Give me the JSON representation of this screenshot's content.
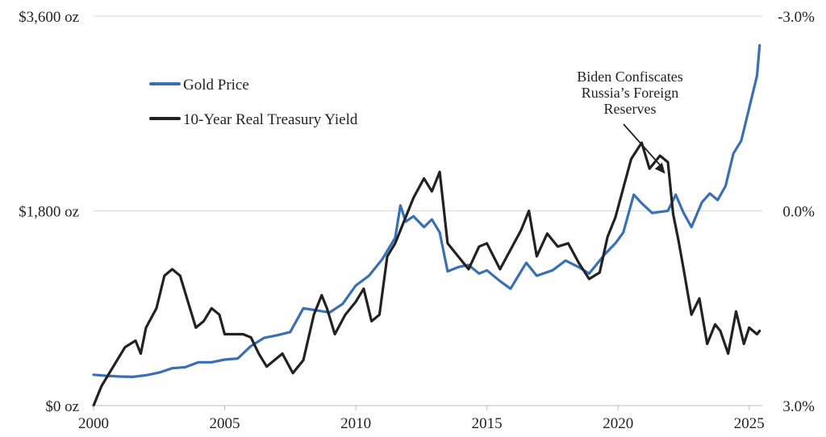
{
  "chart_data": {
    "type": "line",
    "title": "",
    "xlabel": "",
    "x_ticks": [
      "2000",
      "2005",
      "2010",
      "2015",
      "2020",
      "2025"
    ],
    "xlim": [
      2000,
      2025.5
    ],
    "y_left": {
      "ticks": [
        "$0 oz",
        "$1,800 oz",
        "$3,600 oz"
      ],
      "values": [
        0,
        1800,
        3600
      ],
      "ylim": [
        0,
        3600
      ]
    },
    "y_right": {
      "ticks": [
        "-3.0%",
        "0.0%",
        "3.0%"
      ],
      "values": [
        -3.0,
        0.0,
        3.0
      ],
      "ylim": [
        3.0,
        -3.0
      ],
      "inverted": true
    },
    "grid": true,
    "legend_position": "top-left",
    "series": [
      {
        "name": "Gold Price",
        "color": "#3a6fb5",
        "axis": "left",
        "points": [
          [
            2000.0,
            285
          ],
          [
            2000.5,
            275
          ],
          [
            2001.0,
            268
          ],
          [
            2001.5,
            265
          ],
          [
            2002.0,
            280
          ],
          [
            2002.5,
            305
          ],
          [
            2003.0,
            345
          ],
          [
            2003.5,
            355
          ],
          [
            2004.0,
            400
          ],
          [
            2004.5,
            400
          ],
          [
            2005.0,
            425
          ],
          [
            2005.5,
            435
          ],
          [
            2006.0,
            550
          ],
          [
            2006.5,
            625
          ],
          [
            2007.0,
            650
          ],
          [
            2007.5,
            680
          ],
          [
            2008.0,
            900
          ],
          [
            2008.5,
            880
          ],
          [
            2009.0,
            860
          ],
          [
            2009.5,
            940
          ],
          [
            2010.0,
            1110
          ],
          [
            2010.5,
            1200
          ],
          [
            2011.0,
            1350
          ],
          [
            2011.5,
            1550
          ],
          [
            2011.7,
            1850
          ],
          [
            2011.9,
            1700
          ],
          [
            2012.2,
            1750
          ],
          [
            2012.6,
            1650
          ],
          [
            2012.9,
            1720
          ],
          [
            2013.2,
            1600
          ],
          [
            2013.5,
            1240
          ],
          [
            2013.9,
            1280
          ],
          [
            2014.3,
            1300
          ],
          [
            2014.7,
            1220
          ],
          [
            2015.0,
            1250
          ],
          [
            2015.5,
            1150
          ],
          [
            2015.9,
            1080
          ],
          [
            2016.5,
            1320
          ],
          [
            2016.9,
            1200
          ],
          [
            2017.5,
            1250
          ],
          [
            2018.0,
            1340
          ],
          [
            2018.5,
            1280
          ],
          [
            2018.9,
            1220
          ],
          [
            2019.5,
            1400
          ],
          [
            2019.9,
            1500
          ],
          [
            2020.2,
            1600
          ],
          [
            2020.6,
            1950
          ],
          [
            2020.9,
            1870
          ],
          [
            2021.3,
            1780
          ],
          [
            2021.6,
            1790
          ],
          [
            2021.9,
            1800
          ],
          [
            2022.2,
            1950
          ],
          [
            2022.5,
            1780
          ],
          [
            2022.8,
            1650
          ],
          [
            2023.2,
            1880
          ],
          [
            2023.5,
            1960
          ],
          [
            2023.8,
            1900
          ],
          [
            2024.1,
            2030
          ],
          [
            2024.4,
            2330
          ],
          [
            2024.7,
            2450
          ],
          [
            2024.9,
            2650
          ],
          [
            2025.1,
            2850
          ],
          [
            2025.3,
            3050
          ],
          [
            2025.4,
            3330
          ]
        ]
      },
      {
        "name": "10-Year Real Treasury Yield",
        "color": "#222222",
        "axis": "right",
        "points": [
          [
            2000.0,
            3.0
          ],
          [
            2000.3,
            2.7
          ],
          [
            2000.6,
            2.5
          ],
          [
            2000.9,
            2.3
          ],
          [
            2001.2,
            2.1
          ],
          [
            2001.6,
            2.0
          ],
          [
            2001.8,
            2.2
          ],
          [
            2002.0,
            1.8
          ],
          [
            2002.4,
            1.5
          ],
          [
            2002.7,
            1.0
          ],
          [
            2003.0,
            0.9
          ],
          [
            2003.3,
            1.0
          ],
          [
            2003.6,
            1.4
          ],
          [
            2003.9,
            1.8
          ],
          [
            2004.2,
            1.7
          ],
          [
            2004.5,
            1.5
          ],
          [
            2004.8,
            1.6
          ],
          [
            2005.0,
            1.9
          ],
          [
            2005.3,
            1.9
          ],
          [
            2005.7,
            1.9
          ],
          [
            2006.0,
            1.95
          ],
          [
            2006.3,
            2.2
          ],
          [
            2006.6,
            2.4
          ],
          [
            2006.9,
            2.3
          ],
          [
            2007.2,
            2.2
          ],
          [
            2007.6,
            2.5
          ],
          [
            2008.0,
            2.3
          ],
          [
            2008.4,
            1.6
          ],
          [
            2008.7,
            1.3
          ],
          [
            2008.9,
            1.5
          ],
          [
            2009.2,
            1.9
          ],
          [
            2009.6,
            1.6
          ],
          [
            2010.0,
            1.4
          ],
          [
            2010.3,
            1.2
          ],
          [
            2010.6,
            1.7
          ],
          [
            2010.9,
            1.6
          ],
          [
            2011.2,
            0.7
          ],
          [
            2011.5,
            0.5
          ],
          [
            2011.8,
            0.2
          ],
          [
            2012.2,
            -0.2
          ],
          [
            2012.6,
            -0.5
          ],
          [
            2012.9,
            -0.3
          ],
          [
            2013.2,
            -0.6
          ],
          [
            2013.5,
            0.5
          ],
          [
            2013.9,
            0.7
          ],
          [
            2014.3,
            0.9
          ],
          [
            2014.7,
            0.55
          ],
          [
            2015.0,
            0.5
          ],
          [
            2015.5,
            0.9
          ],
          [
            2015.9,
            0.6
          ],
          [
            2016.3,
            0.3
          ],
          [
            2016.6,
            0.0
          ],
          [
            2016.9,
            0.7
          ],
          [
            2017.3,
            0.35
          ],
          [
            2017.7,
            0.55
          ],
          [
            2018.1,
            0.5
          ],
          [
            2018.5,
            0.8
          ],
          [
            2018.9,
            1.05
          ],
          [
            2019.3,
            0.95
          ],
          [
            2019.6,
            0.4
          ],
          [
            2019.9,
            0.1
          ],
          [
            2020.2,
            -0.35
          ],
          [
            2020.5,
            -0.8
          ],
          [
            2020.9,
            -1.05
          ],
          [
            2021.2,
            -0.65
          ],
          [
            2021.6,
            -0.85
          ],
          [
            2021.9,
            -0.75
          ],
          [
            2022.1,
            0.05
          ],
          [
            2022.3,
            0.45
          ],
          [
            2022.5,
            0.9
          ],
          [
            2022.8,
            1.6
          ],
          [
            2023.1,
            1.35
          ],
          [
            2023.4,
            2.05
          ],
          [
            2023.7,
            1.75
          ],
          [
            2023.9,
            1.85
          ],
          [
            2024.2,
            2.2
          ],
          [
            2024.5,
            1.55
          ],
          [
            2024.8,
            2.05
          ],
          [
            2025.0,
            1.8
          ],
          [
            2025.3,
            1.9
          ],
          [
            2025.4,
            1.85
          ]
        ]
      }
    ],
    "annotations": [
      {
        "text_lines": [
          "Biden Confiscates",
          "Russia’s Foreign",
          "Reserves"
        ],
        "arrow_to": [
          2021.8,
          -0.05
        ]
      }
    ]
  }
}
